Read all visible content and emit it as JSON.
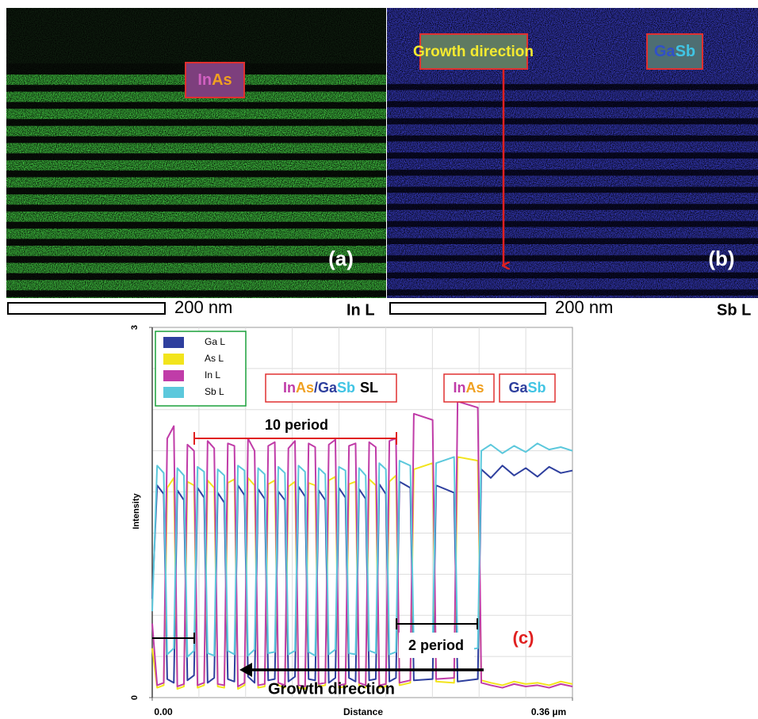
{
  "images": {
    "a": {
      "label": [
        "In",
        "As"
      ],
      "panel": "(a)",
      "scale": "200 nm",
      "element": "In L"
    },
    "b": {
      "label": [
        "Ga",
        "Sb"
      ],
      "arrow_label": "Growth direction",
      "panel": "(b)",
      "scale": "200 nm",
      "element": "Sb L"
    }
  },
  "chart_data": {
    "type": "line",
    "xlabel": "Distance",
    "ylabel": "Intensity",
    "xlim": [
      0,
      0.36
    ],
    "ylim": [
      0,
      3
    ],
    "xticks": [
      {
        "value": 0,
        "label": "0.00"
      },
      {
        "value": 0.36,
        "label": "0.36 µm"
      }
    ],
    "yticks": [
      0,
      3
    ],
    "grid": true,
    "legend": "upper left",
    "annotations": {
      "sl": [
        "In",
        "As",
        "/",
        "Ga",
        "Sb",
        "SL"
      ],
      "inas": [
        "In",
        "As"
      ],
      "gasb": [
        "Ga",
        "Sb"
      ],
      "ten_period": "10 period",
      "two_period": "2 period",
      "panel": "(c)",
      "growth": "Growth direction"
    },
    "x": [
      0,
      0.0042,
      0.00985,
      0.01285,
      0.0185,
      0.0215,
      0.02715,
      0.03015,
      0.0358,
      0.0388,
      0.04445,
      0.04745,
      0.0531,
      0.0561,
      0.06175,
      0.06475,
      0.0704,
      0.0734,
      0.07905,
      0.08205,
      0.0877,
      0.0907,
      0.09635,
      0.09935,
      0.105,
      0.108,
      0.11365,
      0.11665,
      0.1223,
      0.1253,
      0.13095,
      0.13395,
      0.1396,
      0.1426,
      0.14825,
      0.15125,
      0.1569,
      0.1599,
      0.16555,
      0.16855,
      0.1742,
      0.1772,
      0.18285,
      0.18585,
      0.1915,
      0.1945,
      0.20015,
      0.20315,
      0.2088,
      0.2118,
      0.2211,
      0.2241,
      0.2402,
      0.2432,
      0.2586,
      0.2616,
      0.2789,
      0.2819,
      0.29,
      0.3,
      0.31,
      0.32,
      0.33,
      0.34,
      0.35,
      0.36
    ],
    "series": [
      {
        "name": "Ga L",
        "color": "#2e3f9e",
        "values": [
          0.8,
          1.72,
          1.65,
          0.15,
          0.12,
          1.68,
          1.6,
          0.14,
          0.18,
          1.7,
          1.62,
          0.12,
          0.16,
          1.66,
          1.58,
          0.15,
          0.13,
          1.72,
          1.64,
          0.17,
          0.12,
          1.69,
          1.61,
          0.14,
          0.15,
          1.67,
          1.6,
          0.13,
          0.17,
          1.71,
          1.63,
          0.15,
          0.14,
          1.68,
          1.6,
          0.12,
          0.16,
          1.7,
          1.62,
          0.16,
          0.13,
          1.69,
          1.61,
          0.14,
          0.15,
          1.73,
          1.65,
          0.13,
          0.16,
          1.75,
          1.7,
          0.14,
          0.15,
          1.72,
          1.66,
          0.13,
          0.15,
          1.85,
          1.78,
          1.88,
          1.8,
          1.86,
          1.79,
          1.87,
          1.82,
          1.84
        ]
      },
      {
        "name": "As L",
        "color": "#f2e41c",
        "values": [
          0.4,
          0.08,
          0.1,
          1.7,
          1.78,
          0.07,
          0.09,
          1.75,
          1.72,
          0.08,
          0.1,
          1.76,
          1.7,
          0.09,
          0.08,
          1.74,
          1.77,
          0.07,
          0.1,
          1.78,
          1.72,
          0.08,
          0.09,
          1.73,
          1.76,
          0.1,
          0.08,
          1.71,
          1.75,
          0.08,
          0.07,
          1.74,
          1.72,
          0.09,
          0.1,
          1.76,
          1.79,
          0.08,
          0.09,
          1.73,
          1.75,
          0.1,
          0.08,
          1.77,
          1.72,
          0.08,
          0.09,
          1.75,
          1.8,
          0.1,
          0.12,
          1.85,
          1.9,
          0.13,
          0.12,
          1.95,
          1.92,
          0.14,
          0.12,
          0.1,
          0.13,
          0.11,
          0.12,
          0.1,
          0.13,
          0.11
        ]
      },
      {
        "name": "In L",
        "color": "#c03ca8",
        "values": [
          0.6,
          0.1,
          0.12,
          2.1,
          2.2,
          0.09,
          0.11,
          2.05,
          2.0,
          0.1,
          0.12,
          2.08,
          2.02,
          0.11,
          0.1,
          2.06,
          2.04,
          0.09,
          0.12,
          2.1,
          2.0,
          0.1,
          0.11,
          2.04,
          2.07,
          0.12,
          0.1,
          2.02,
          2.08,
          0.1,
          0.09,
          2.06,
          2.03,
          0.11,
          0.12,
          2.05,
          2.09,
          0.1,
          0.11,
          2.04,
          2.06,
          0.12,
          0.1,
          2.07,
          2.03,
          0.1,
          0.11,
          2.08,
          2.1,
          0.12,
          0.14,
          2.3,
          2.25,
          0.15,
          0.16,
          2.4,
          2.35,
          0.12,
          0.1,
          0.08,
          0.11,
          0.09,
          0.1,
          0.08,
          0.11,
          0.09
        ]
      },
      {
        "name": "Sb L",
        "color": "#5cc8dc",
        "values": [
          0.7,
          1.88,
          1.82,
          0.35,
          0.4,
          1.86,
          1.8,
          0.33,
          0.38,
          1.87,
          1.83,
          0.36,
          0.34,
          1.85,
          1.8,
          0.38,
          0.35,
          1.88,
          1.84,
          0.34,
          0.39,
          1.86,
          1.81,
          0.36,
          0.37,
          1.87,
          1.82,
          0.35,
          0.38,
          1.88,
          1.83,
          0.37,
          0.34,
          1.86,
          1.81,
          0.35,
          0.39,
          1.87,
          1.84,
          0.36,
          0.35,
          1.86,
          1.8,
          0.38,
          0.36,
          1.9,
          1.85,
          0.35,
          0.37,
          1.92,
          1.88,
          0.4,
          0.42,
          1.9,
          1.95,
          0.38,
          0.4,
          2.0,
          2.05,
          1.98,
          2.04,
          1.99,
          2.06,
          2.01,
          2.03,
          2.0
        ]
      }
    ]
  }
}
